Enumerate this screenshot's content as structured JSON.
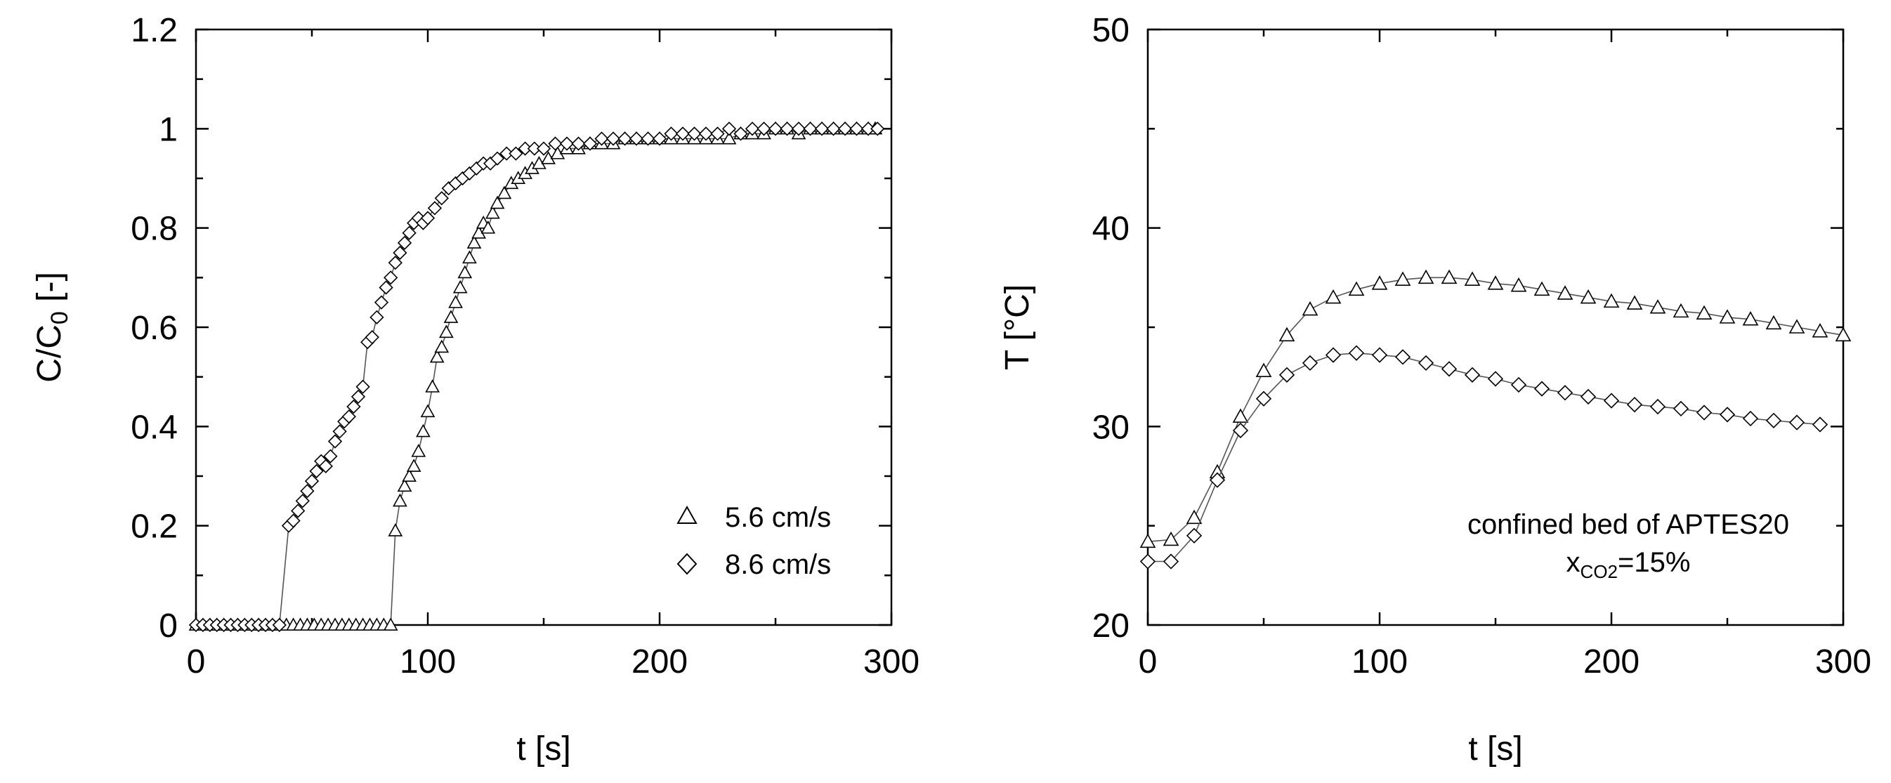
{
  "colors": {
    "axis": "#000000",
    "line": "#555555",
    "marker": "#000000",
    "background": "#ffffff"
  },
  "chart_data": [
    {
      "type": "scatter",
      "title": "",
      "xlabel": "t [s]",
      "ylabel": "C/C0 [-]",
      "ylabel_main": "C/C",
      "ylabel_sub": "0",
      "ylabel_tail": " [-]",
      "xlim": [
        0,
        300
      ],
      "ylim": [
        0,
        1.2
      ],
      "xticks": [
        0,
        100,
        200,
        300
      ],
      "yticks": [
        0,
        0.2,
        0.4,
        0.6,
        0.8,
        1,
        1.2
      ],
      "xtick_labels": [
        "0",
        "100",
        "200",
        "300"
      ],
      "ytick_labels": [
        "0",
        "0.2",
        "0.4",
        "0.6",
        "0.8",
        "1",
        "1.2"
      ],
      "x_minor_step": 50,
      "y_minor_step": 0.1,
      "legend_position": "lower-right",
      "series": [
        {
          "name": "5.6 cm/s",
          "marker": "triangle",
          "x": [
            0,
            3,
            6,
            9,
            12,
            15,
            18,
            21,
            24,
            27,
            30,
            33,
            36,
            39,
            42,
            45,
            48,
            51,
            54,
            57,
            60,
            63,
            66,
            69,
            72,
            75,
            78,
            81,
            84,
            86,
            88,
            90,
            92,
            94,
            96,
            98,
            100,
            102,
            104,
            106,
            108,
            110,
            112,
            114,
            116,
            118,
            120,
            122,
            124,
            126,
            128,
            130,
            133,
            136,
            139,
            142,
            145,
            148,
            152,
            156,
            160,
            165,
            170,
            175,
            180,
            185,
            190,
            195,
            200,
            205,
            210,
            215,
            220,
            225,
            230,
            235,
            240,
            245,
            250,
            255,
            260,
            265,
            270,
            275,
            280,
            285,
            290,
            293
          ],
          "y": [
            0,
            0,
            0,
            0,
            0,
            0,
            0,
            0,
            0,
            0,
            0,
            0,
            0,
            0,
            0,
            0,
            0,
            0,
            0,
            0,
            0,
            0,
            0,
            0,
            0,
            0,
            0,
            0,
            0,
            0.19,
            0.25,
            0.28,
            0.3,
            0.32,
            0.35,
            0.39,
            0.43,
            0.48,
            0.54,
            0.56,
            0.59,
            0.62,
            0.65,
            0.68,
            0.71,
            0.74,
            0.77,
            0.79,
            0.81,
            0.8,
            0.83,
            0.85,
            0.87,
            0.89,
            0.9,
            0.91,
            0.92,
            0.93,
            0.94,
            0.95,
            0.96,
            0.96,
            0.97,
            0.97,
            0.97,
            0.98,
            0.98,
            0.98,
            0.98,
            0.98,
            0.98,
            0.98,
            0.98,
            0.98,
            0.98,
            0.99,
            0.99,
            0.99,
            1.0,
            1.0,
            0.99,
            1.0,
            1.0,
            1.0,
            1.0,
            1.0,
            1.0,
            1.0
          ]
        },
        {
          "name": "8.6 cm/s",
          "marker": "diamond",
          "x": [
            0,
            3,
            6,
            9,
            12,
            15,
            18,
            21,
            24,
            27,
            30,
            33,
            36,
            40,
            42,
            44,
            46,
            48,
            50,
            52,
            54,
            56,
            58,
            60,
            62,
            64,
            66,
            68,
            70,
            72,
            74,
            76,
            78,
            80,
            82,
            84,
            86,
            88,
            90,
            92,
            94,
            96,
            98,
            100,
            103,
            106,
            109,
            112,
            115,
            118,
            121,
            124,
            127,
            130,
            134,
            138,
            142,
            146,
            150,
            155,
            160,
            165,
            170,
            175,
            180,
            185,
            190,
            195,
            200,
            205,
            210,
            215,
            220,
            225,
            230,
            235,
            240,
            245,
            250,
            255,
            260,
            265,
            270,
            275,
            280,
            285,
            290,
            294
          ],
          "y": [
            0,
            0,
            0,
            0,
            0,
            0,
            0,
            0,
            0,
            0,
            0,
            0,
            0,
            0.2,
            0.21,
            0.23,
            0.25,
            0.27,
            0.29,
            0.31,
            0.33,
            0.32,
            0.34,
            0.37,
            0.39,
            0.41,
            0.42,
            0.44,
            0.46,
            0.48,
            0.57,
            0.58,
            0.62,
            0.65,
            0.68,
            0.7,
            0.73,
            0.75,
            0.77,
            0.79,
            0.81,
            0.82,
            0.81,
            0.82,
            0.84,
            0.86,
            0.88,
            0.89,
            0.9,
            0.91,
            0.92,
            0.93,
            0.93,
            0.94,
            0.95,
            0.95,
            0.96,
            0.96,
            0.96,
            0.97,
            0.97,
            0.97,
            0.97,
            0.98,
            0.98,
            0.98,
            0.98,
            0.98,
            0.98,
            0.99,
            0.99,
            0.99,
            0.99,
            0.99,
            1.0,
            0.99,
            1.0,
            1.0,
            1.0,
            1.0,
            1.0,
            1.0,
            1.0,
            1.0,
            1.0,
            1.0,
            1.0,
            1.0
          ]
        }
      ]
    },
    {
      "type": "line",
      "title": "",
      "xlabel": "t [s]",
      "ylabel": "T [°C]",
      "xlim": [
        0,
        300
      ],
      "ylim": [
        20,
        50
      ],
      "xticks": [
        0,
        100,
        200,
        300
      ],
      "yticks": [
        20,
        30,
        40,
        50
      ],
      "xtick_labels": [
        "0",
        "100",
        "200",
        "300"
      ],
      "ytick_labels": [
        "20",
        "30",
        "40",
        "50"
      ],
      "x_minor_step": 50,
      "y_minor_step": 5,
      "annotation": {
        "line1": "confined bed of APTES20",
        "line2_main": "x",
        "line2_sub": "CO2",
        "line2_tail": "=15%"
      },
      "series": [
        {
          "name": "5.6 cm/s",
          "marker": "triangle",
          "x": [
            0,
            10,
            20,
            30,
            40,
            50,
            60,
            70,
            80,
            90,
            100,
            110,
            120,
            130,
            140,
            150,
            160,
            170,
            180,
            190,
            200,
            210,
            220,
            230,
            240,
            250,
            260,
            270,
            280,
            290,
            300
          ],
          "y": [
            24.2,
            24.3,
            25.4,
            27.7,
            30.5,
            32.8,
            34.6,
            35.9,
            36.5,
            36.9,
            37.2,
            37.4,
            37.5,
            37.5,
            37.4,
            37.2,
            37.1,
            36.9,
            36.7,
            36.5,
            36.3,
            36.2,
            36.0,
            35.8,
            35.7,
            35.5,
            35.4,
            35.2,
            35.0,
            34.8,
            34.6
          ]
        },
        {
          "name": "8.6 cm/s",
          "marker": "diamond",
          "x": [
            0,
            10,
            20,
            30,
            40,
            50,
            60,
            70,
            80,
            90,
            100,
            110,
            120,
            130,
            140,
            150,
            160,
            170,
            180,
            190,
            200,
            210,
            220,
            230,
            240,
            250,
            260,
            270,
            280,
            290
          ],
          "y": [
            23.2,
            23.2,
            24.5,
            27.3,
            29.8,
            31.4,
            32.6,
            33.2,
            33.6,
            33.7,
            33.6,
            33.5,
            33.2,
            32.9,
            32.6,
            32.4,
            32.1,
            31.9,
            31.7,
            31.5,
            31.3,
            31.1,
            31.0,
            30.9,
            30.7,
            30.6,
            30.4,
            30.3,
            30.2,
            30.1
          ]
        }
      ]
    }
  ]
}
